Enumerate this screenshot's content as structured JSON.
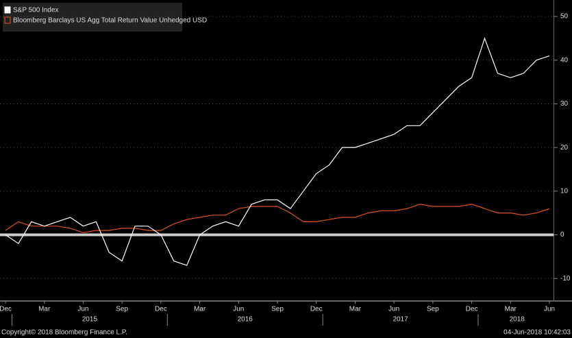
{
  "chart_data": {
    "type": "line",
    "x": [
      "2014-12",
      "2015-01",
      "2015-02",
      "2015-03",
      "2015-04",
      "2015-05",
      "2015-06",
      "2015-07",
      "2015-08",
      "2015-09",
      "2015-10",
      "2015-11",
      "2015-12",
      "2016-01",
      "2016-02",
      "2016-03",
      "2016-04",
      "2016-05",
      "2016-06",
      "2016-07",
      "2016-08",
      "2016-09",
      "2016-10",
      "2016-11",
      "2016-12",
      "2017-01",
      "2017-02",
      "2017-03",
      "2017-04",
      "2017-05",
      "2017-06",
      "2017-07",
      "2017-08",
      "2017-09",
      "2017-10",
      "2017-11",
      "2017-12",
      "2018-01",
      "2018-02",
      "2018-03",
      "2018-04",
      "2018-05",
      "2018-06"
    ],
    "series": [
      {
        "name": "S&P 500 Index",
        "color": "#ffffff",
        "values": [
          0,
          -2,
          3,
          2,
          3,
          4,
          2,
          3,
          -4,
          -6,
          2,
          2,
          0,
          -6,
          -7,
          0,
          2,
          3,
          2,
          7,
          8,
          8,
          6,
          10,
          14,
          16,
          20,
          20,
          21,
          22,
          23,
          25,
          25,
          28,
          31,
          34,
          36,
          45,
          37,
          36,
          37,
          40,
          41
        ]
      },
      {
        "name": "Bloomberg Barclays US Agg Total Return Value Unhedged USD",
        "color": "#e0541c",
        "values": [
          1,
          3,
          2,
          2,
          2,
          1.5,
          0.5,
          1,
          1,
          1.5,
          1.5,
          1,
          1,
          2.5,
          3.5,
          4,
          4.5,
          4.5,
          6,
          6.5,
          6.5,
          6.5,
          5,
          3,
          3,
          3.5,
          4,
          4,
          5,
          5.5,
          5.5,
          6,
          7,
          6.5,
          6.5,
          6.5,
          7,
          6,
          5,
          5,
          4.5,
          5,
          6
        ]
      }
    ],
    "xlim": [
      "2014-12",
      "2018-06"
    ],
    "xticks": [
      {
        "value": "2014-12",
        "label": "Dec"
      },
      {
        "value": "2015-03",
        "label": "Mar"
      },
      {
        "value": "2015-06",
        "label": "Jun"
      },
      {
        "value": "2015-09",
        "label": "Sep"
      },
      {
        "value": "2015-12",
        "label": "Dec"
      },
      {
        "value": "2016-03",
        "label": "Mar"
      },
      {
        "value": "2016-06",
        "label": "Jun"
      },
      {
        "value": "2016-09",
        "label": "Sep"
      },
      {
        "value": "2016-12",
        "label": "Dec"
      },
      {
        "value": "2017-03",
        "label": "Mar"
      },
      {
        "value": "2017-06",
        "label": "Jun"
      },
      {
        "value": "2017-09",
        "label": "Sep"
      },
      {
        "value": "2017-12",
        "label": "Dec"
      },
      {
        "value": "2018-03",
        "label": "Mar"
      },
      {
        "value": "2018-06",
        "label": "Jun"
      }
    ],
    "years": [
      "2015",
      "2016",
      "2017",
      "2018"
    ],
    "ylim": [
      -15,
      53
    ],
    "yticks": [
      -10,
      0,
      10,
      20,
      30,
      40,
      50
    ],
    "grid": true,
    "footer_left": "Copyright© 2018 Bloomberg Finance L.P.",
    "footer_right": "04-Jun-2018 10:42:03"
  }
}
